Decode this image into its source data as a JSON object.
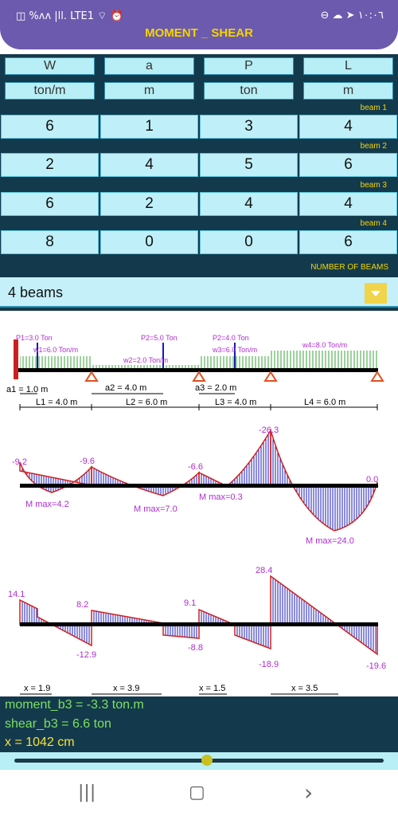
{
  "status_bar": {
    "left_text": "◫ %ʌʌ |ll. LTE1 ⌔ ⏰",
    "right_text": "⊖ ☁ ➤ ١٠:٠٦"
  },
  "app": {
    "title": "MOMENT _ SHEAR"
  },
  "headers": {
    "names": [
      "W",
      "a",
      "P",
      "L"
    ],
    "units": [
      "ton/m",
      "m",
      "ton",
      "m"
    ]
  },
  "beams": [
    {
      "label": "beam 1",
      "values": [
        "6",
        "1",
        "3",
        "4"
      ]
    },
    {
      "label": "beam 2",
      "values": [
        "2",
        "4",
        "5",
        "6"
      ]
    },
    {
      "label": "beam 3",
      "values": [
        "6",
        "2",
        "4",
        "4"
      ]
    },
    {
      "label": "beam 4",
      "values": [
        "8",
        "0",
        "0",
        "6"
      ]
    }
  ],
  "number_of_beams_label": "NUMBER OF BEAMS",
  "number_of_beams_value": "4 beams",
  "load_diagram": {
    "point_loads": [
      "P1=3.0 Ton",
      "P2=5.0 Ton",
      "P2=4.0 Ton"
    ],
    "distributed_loads": [
      "w1=6.0 Ton/m",
      "w2=2.0 Ton/m",
      "w3=6.0 Ton/m",
      "w4=8.0 Ton/m"
    ],
    "distances": [
      "a1 = 1.0 m",
      "a2 = 4.0 m",
      "a3 = 2.0 m"
    ],
    "lengths": [
      "L1 = 4.0 m",
      "L2 = 6.0 m",
      "L3 = 4.0 m",
      "L4 = 6.0 m"
    ]
  },
  "moment_diagram": {
    "values": [
      "-9.2",
      "-9.6",
      "-6.6",
      "-26.3",
      "0.0"
    ],
    "max_labels": [
      "M max=4.2",
      "M max=7.0",
      "M max=0.3",
      "M max=24.0"
    ]
  },
  "shear_diagram": {
    "values": [
      "14.1",
      "8.2",
      "-12.9",
      "9.1",
      "-8.8",
      "28.4",
      "-18.9",
      "-19.6"
    ],
    "x_labels": [
      "x = 1.9",
      "x = 3.9",
      "x = 1.5",
      "x = 3.5"
    ]
  },
  "results": {
    "moment": "moment_b3 = -3.3  ton.m",
    "shear": "shear_b3 = 6.6  ton",
    "position": "x = 1042 cm"
  },
  "slider": {
    "value": 0.52
  },
  "nav": {
    "recent": "|||",
    "home": "▢",
    "back": "›"
  },
  "colors": {
    "panel": "#133a4c",
    "cell": "#bfeff8",
    "accent": "#f5d400",
    "result_green": "#7ee060",
    "result_yellow": "#f5e040"
  }
}
